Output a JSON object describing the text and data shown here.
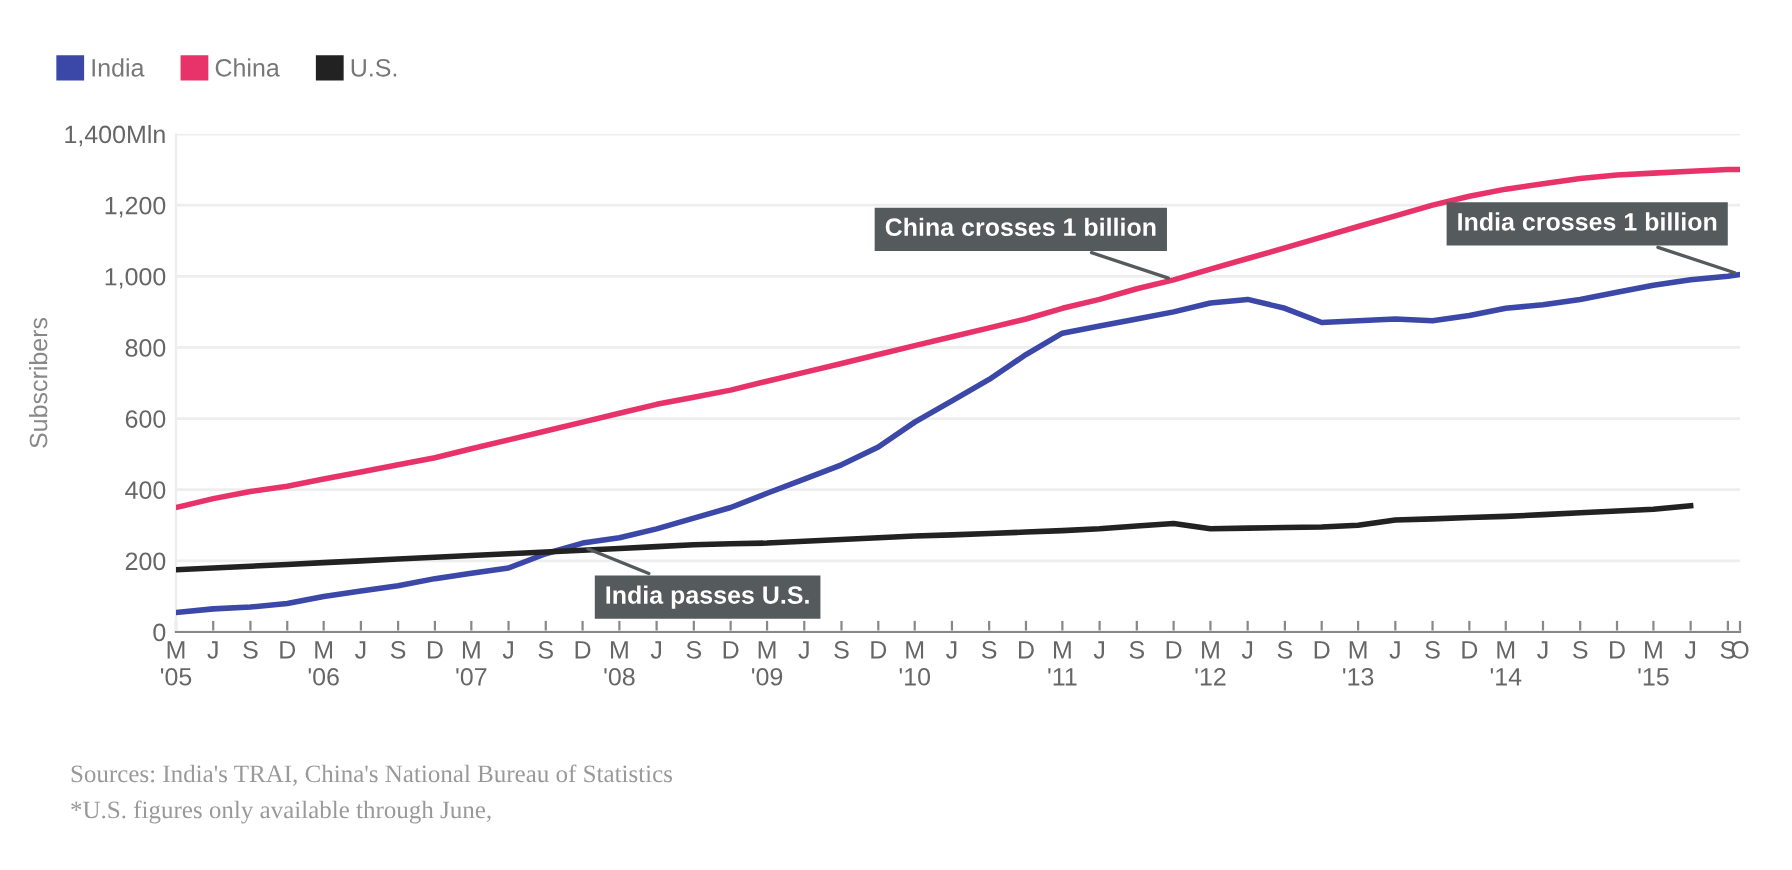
{
  "chart_data": {
    "type": "line",
    "ylabel": "Subscribers",
    "x": [
      "2005-03",
      "2005-06",
      "2005-09",
      "2005-12",
      "2006-03",
      "2006-06",
      "2006-09",
      "2006-12",
      "2007-03",
      "2007-06",
      "2007-09",
      "2007-12",
      "2008-03",
      "2008-06",
      "2008-09",
      "2008-12",
      "2009-03",
      "2009-06",
      "2009-09",
      "2009-12",
      "2010-03",
      "2010-06",
      "2010-09",
      "2010-12",
      "2011-03",
      "2011-06",
      "2011-09",
      "2011-12",
      "2012-03",
      "2012-06",
      "2012-09",
      "2012-12",
      "2013-03",
      "2013-06",
      "2013-09",
      "2013-12",
      "2014-03",
      "2014-06",
      "2014-09",
      "2014-12",
      "2015-03",
      "2015-06",
      "2015-09",
      "2015-10"
    ],
    "series": [
      {
        "name": "India",
        "color": "#3b48a8",
        "values": [
          55,
          65,
          70,
          80,
          100,
          115,
          130,
          150,
          165,
          180,
          220,
          250,
          265,
          290,
          320,
          350,
          390,
          430,
          470,
          520,
          590,
          650,
          710,
          780,
          840,
          860,
          880,
          900,
          925,
          935,
          910,
          870,
          875,
          880,
          875,
          890,
          910,
          920,
          935,
          955,
          975,
          990,
          1000,
          1005
        ]
      },
      {
        "name": "China",
        "color": "#e8336a",
        "values": [
          350,
          375,
          395,
          410,
          430,
          450,
          470,
          490,
          515,
          540,
          565,
          590,
          615,
          640,
          660,
          680,
          705,
          730,
          755,
          780,
          805,
          830,
          855,
          880,
          910,
          935,
          965,
          990,
          1020,
          1050,
          1080,
          1110,
          1140,
          1170,
          1200,
          1225,
          1245,
          1260,
          1275,
          1285,
          1290,
          1295,
          1300,
          1300
        ]
      },
      {
        "name": "U.S.",
        "color": "#222222",
        "values": [
          175,
          180,
          185,
          190,
          195,
          200,
          205,
          210,
          215,
          220,
          225,
          230,
          235,
          240,
          245,
          248,
          250,
          255,
          260,
          265,
          270,
          273,
          277,
          281,
          285,
          290,
          298,
          305,
          290,
          292,
          294,
          295,
          300,
          315,
          318,
          322,
          325,
          330,
          335,
          340,
          345,
          355,
          null,
          null
        ]
      }
    ],
    "xlim": [
      "2005-03",
      "2015-10"
    ],
    "xticks": [
      {
        "value": "2005-03",
        "label": "M\n'05"
      },
      {
        "value": "2005-06",
        "label": "J"
      },
      {
        "value": "2005-09",
        "label": "S"
      },
      {
        "value": "2005-12",
        "label": "D"
      },
      {
        "value": "2006-03",
        "label": "M\n'06"
      },
      {
        "value": "2006-06",
        "label": "J"
      },
      {
        "value": "2006-09",
        "label": "S"
      },
      {
        "value": "2006-12",
        "label": "D"
      },
      {
        "value": "2007-03",
        "label": "M\n'07"
      },
      {
        "value": "2007-06",
        "label": "J"
      },
      {
        "value": "2007-09",
        "label": "S"
      },
      {
        "value": "2007-12",
        "label": "D"
      },
      {
        "value": "2008-03",
        "label": "M\n'08"
      },
      {
        "value": "2008-06",
        "label": "J"
      },
      {
        "value": "2008-09",
        "label": "S"
      },
      {
        "value": "2008-12",
        "label": "D"
      },
      {
        "value": "2009-03",
        "label": "M\n'09"
      },
      {
        "value": "2009-06",
        "label": "J"
      },
      {
        "value": "2009-09",
        "label": "S"
      },
      {
        "value": "2009-12",
        "label": "D"
      },
      {
        "value": "2010-03",
        "label": "M\n'10"
      },
      {
        "value": "2010-06",
        "label": "J"
      },
      {
        "value": "2010-09",
        "label": "S"
      },
      {
        "value": "2010-12",
        "label": "D"
      },
      {
        "value": "2011-03",
        "label": "M\n'11"
      },
      {
        "value": "2011-06",
        "label": "J"
      },
      {
        "value": "2011-09",
        "label": "S"
      },
      {
        "value": "2011-12",
        "label": "D"
      },
      {
        "value": "2012-03",
        "label": "M\n'12"
      },
      {
        "value": "2012-06",
        "label": "J"
      },
      {
        "value": "2012-09",
        "label": "S"
      },
      {
        "value": "2012-12",
        "label": "D"
      },
      {
        "value": "2013-03",
        "label": "M\n'13"
      },
      {
        "value": "2013-06",
        "label": "J"
      },
      {
        "value": "2013-09",
        "label": "S"
      },
      {
        "value": "2013-12",
        "label": "D"
      },
      {
        "value": "2014-03",
        "label": "M\n'14"
      },
      {
        "value": "2014-06",
        "label": "J"
      },
      {
        "value": "2014-09",
        "label": "S"
      },
      {
        "value": "2014-12",
        "label": "D"
      },
      {
        "value": "2015-03",
        "label": "M\n'15"
      },
      {
        "value": "2015-06",
        "label": "J"
      },
      {
        "value": "2015-09",
        "label": "S"
      },
      {
        "value": "2015-10",
        "label": "O"
      }
    ],
    "ylim": [
      0,
      1400
    ],
    "yticks": [
      0,
      200,
      400,
      600,
      800,
      {
        "value": 1000,
        "label": "1,000"
      },
      {
        "value": 1200,
        "label": "1,200"
      },
      {
        "value": 1400,
        "label": "1,400Mln"
      }
    ],
    "grid": "y",
    "legend": "top left",
    "line_style": "solid",
    "marker": "none",
    "annotations": [
      {
        "text": "China crosses 1 billion",
        "x": "2011-12",
        "y": 990
      },
      {
        "text": "India crosses 1 billion",
        "x": "2015-10",
        "y": 1005
      },
      {
        "text": "India passes U.S.",
        "x": "2007-12",
        "y": 240
      },
      "Sources: India's TRAI, China's National Bureau of Statistics",
      "*U.S. figures only available through June,"
    ]
  }
}
